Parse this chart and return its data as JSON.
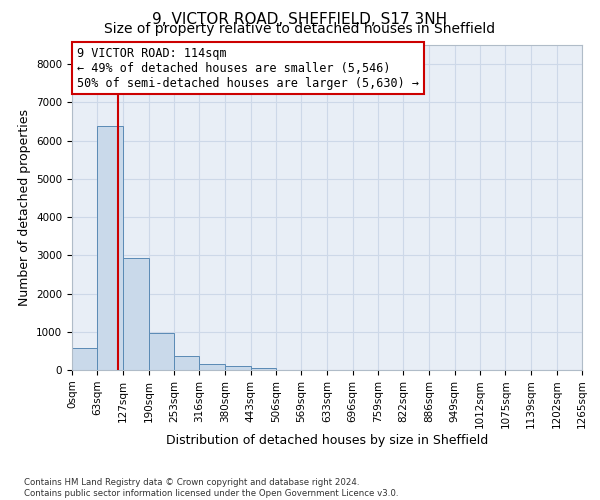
{
  "title": "9, VICTOR ROAD, SHEFFIELD, S17 3NH",
  "subtitle": "Size of property relative to detached houses in Sheffield",
  "xlabel": "Distribution of detached houses by size in Sheffield",
  "ylabel": "Number of detached properties",
  "footer_line1": "Contains HM Land Registry data © Crown copyright and database right 2024.",
  "footer_line2": "Contains public sector information licensed under the Open Government Licence v3.0.",
  "bar_edges": [
    0,
    63,
    127,
    190,
    253,
    316,
    380,
    443,
    506,
    569,
    633,
    696,
    759,
    822,
    886,
    949,
    1012,
    1075,
    1139,
    1202,
    1265
  ],
  "bar_heights": [
    570,
    6380,
    2920,
    975,
    360,
    160,
    100,
    65,
    0,
    0,
    0,
    0,
    0,
    0,
    0,
    0,
    0,
    0,
    0,
    0
  ],
  "bar_color": "#c9d9ea",
  "bar_edge_color": "#5a8ab5",
  "property_size": 114,
  "vline_color": "#cc0000",
  "annotation_line1": "9 VICTOR ROAD: 114sqm",
  "annotation_line2": "← 49% of detached houses are smaller (5,546)",
  "annotation_line3": "50% of semi-detached houses are larger (5,630) →",
  "annotation_box_edgecolor": "#cc0000",
  "annotation_bg_color": "#ffffff",
  "ylim": [
    0,
    8500
  ],
  "yticks": [
    0,
    1000,
    2000,
    3000,
    4000,
    5000,
    6000,
    7000,
    8000
  ],
  "grid_color": "#cdd8e8",
  "bg_color": "#e8eef6",
  "title_fontsize": 11,
  "subtitle_fontsize": 10,
  "ylabel_fontsize": 9,
  "xlabel_fontsize": 9,
  "tick_fontsize": 7.5,
  "ann_fontsize": 8.5
}
